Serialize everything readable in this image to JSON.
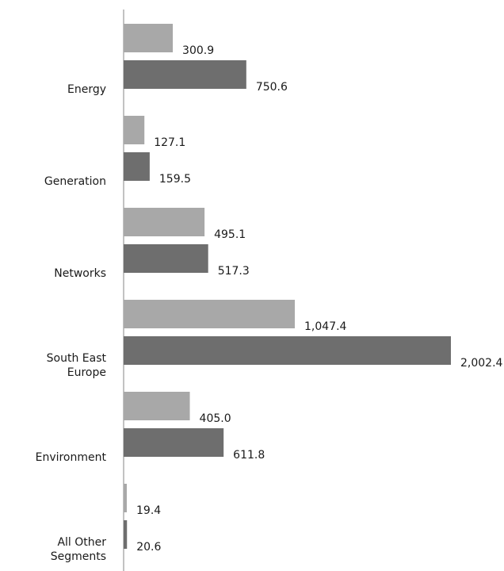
{
  "chart_data": {
    "type": "bar",
    "orientation": "horizontal",
    "categories": [
      "Energy",
      "Generation",
      "Networks",
      "South East Europe",
      "Environment",
      "All Other Segments"
    ],
    "series": [
      {
        "values": [
          300.9,
          127.1,
          495.1,
          1047.4,
          405.0,
          19.4
        ],
        "value_labels": [
          "300.9",
          "127.1",
          "495.1",
          "1,047.4",
          "405.0",
          "19.4"
        ],
        "color": "#a8a8a8"
      },
      {
        "values": [
          750.6,
          159.5,
          517.3,
          2002.4,
          611.8,
          20.6
        ],
        "value_labels": [
          "750.6",
          "159.5",
          "517.3",
          "2,002.4",
          "611.8",
          "20.6"
        ],
        "color": "#6e6e6e"
      }
    ],
    "title": "",
    "xlabel": "",
    "ylabel": "",
    "xlim": [
      0,
      2002.4
    ],
    "grid": false,
    "legend": "none"
  }
}
